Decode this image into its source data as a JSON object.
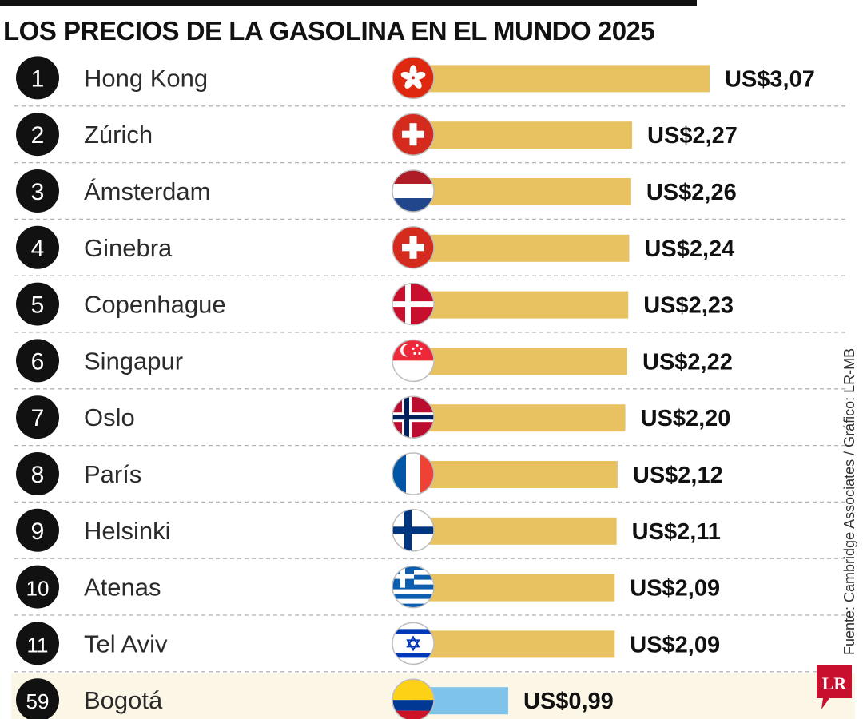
{
  "title": "LOS PRECIOS DE LA GASOLINA EN EL MUNDO 2025",
  "source": "Fuente: Cambridge Associates / Gráfico: LR-MB",
  "logo_text": "LR",
  "colors": {
    "bar": "#e8c260",
    "bar_highlight": "#7ec4ea",
    "highlight_row_bg": "#fbf6e6",
    "rank_circle": "#111111",
    "separator": "#b5b5b5",
    "logo": "#c8102e"
  },
  "chart_data": {
    "type": "bar",
    "orientation": "horizontal",
    "title": "LOS PRECIOS DE LA GASOLINA EN EL MUNDO 2025",
    "xlim": [
      0,
      3.07
    ],
    "ranks": [
      "1",
      "2",
      "3",
      "4",
      "5",
      "6",
      "7",
      "8",
      "9",
      "10",
      "11",
      "59"
    ],
    "categories": [
      "Hong Kong",
      "Zúrich",
      "Ámsterdam",
      "Ginebra",
      "Copenhague",
      "Singapur",
      "Oslo",
      "París",
      "Helsinki",
      "Atenas",
      "Tel Aviv",
      "Bogotá"
    ],
    "values": [
      3.07,
      2.27,
      2.26,
      2.24,
      2.23,
      2.22,
      2.2,
      2.12,
      2.11,
      2.09,
      2.09,
      0.99
    ],
    "value_labels": [
      "US$3,07",
      "US$2,27",
      "US$2,26",
      "US$2,24",
      "US$2,23",
      "US$2,22",
      "US$2,20",
      "US$2,12",
      "US$2,11",
      "US$2,09",
      "US$2,09",
      "US$0,99"
    ],
    "flags": [
      "hong-kong-flag",
      "switzerland-flag",
      "netherlands-flag",
      "switzerland-flag",
      "denmark-flag",
      "singapore-flag",
      "norway-flag",
      "france-flag",
      "finland-flag",
      "greece-flag",
      "israel-flag",
      "colombia-flag"
    ],
    "highlighted": [
      "Bogotá"
    ]
  }
}
